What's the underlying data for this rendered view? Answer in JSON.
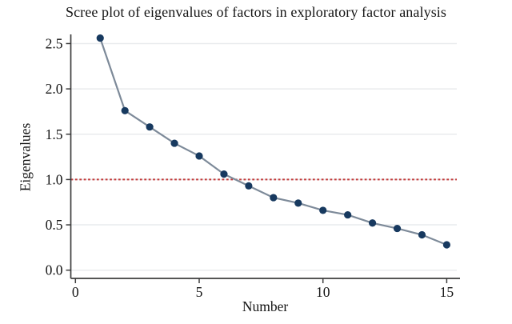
{
  "page": {
    "title": "Scree plot of eigenvalues of factors in exploratory factor analysis"
  },
  "chart_data": {
    "type": "line",
    "title": "Scree plot of eigenvalues of factors in exploratory factor analysis",
    "xlabel": "Number",
    "ylabel": "Eigenvalues",
    "x": [
      1,
      2,
      3,
      4,
      5,
      6,
      7,
      8,
      9,
      10,
      11,
      12,
      13,
      14,
      15
    ],
    "y": [
      2.56,
      1.76,
      1.58,
      1.4,
      1.26,
      1.06,
      0.93,
      0.8,
      0.74,
      0.66,
      0.61,
      0.52,
      0.46,
      0.39,
      0.28
    ],
    "xtick_labels": [
      "0",
      "5",
      "10",
      "15"
    ],
    "xtick_values": [
      0,
      5,
      10,
      15
    ],
    "ytick_labels": [
      "0.0",
      "0.5",
      "1.0",
      "1.5",
      "2.0",
      "2.5"
    ],
    "ytick_values": [
      0,
      0.5,
      1.0,
      1.5,
      2.0,
      2.5
    ],
    "xlim": [
      0,
      15.4
    ],
    "ylim": [
      0,
      2.6
    ],
    "grid": "horizontal-only",
    "legend": "none",
    "reference_line": {
      "y": 1.0,
      "style": "dashed"
    },
    "colors": {
      "marker": "#17395f",
      "line": "#7d8a99",
      "grid": "#e9ebed",
      "axis": "#3d3d3d",
      "reference": "#c23b3b",
      "text": "#141414",
      "background": "#ffffff"
    }
  }
}
